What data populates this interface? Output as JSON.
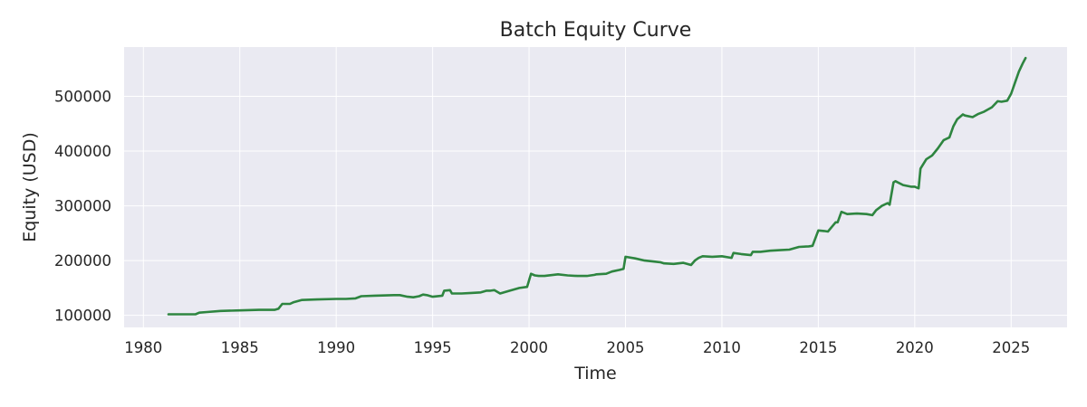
{
  "chart_data": {
    "type": "line",
    "title": "Batch Equity Curve",
    "xlabel": "Time",
    "ylabel": "Equity (USD)",
    "xlim": [
      1979.0,
      2027.9
    ],
    "ylim": [
      78000,
      590000
    ],
    "x_ticks": [
      1980,
      1985,
      1990,
      1995,
      2000,
      2005,
      2010,
      2015,
      2020,
      2025
    ],
    "x_tick_labels": [
      "1980",
      "1985",
      "1990",
      "1995",
      "2000",
      "2005",
      "2010",
      "2015",
      "2020",
      "2025"
    ],
    "y_ticks": [
      100000,
      200000,
      300000,
      400000,
      500000
    ],
    "y_tick_labels": [
      "100000",
      "200000",
      "300000",
      "400000",
      "500000"
    ],
    "grid": true,
    "legend": "none",
    "colors": {
      "line": "#2e8540",
      "plot_bg": "#eaeaf2",
      "grid": "#ffffff",
      "text": "#262626"
    },
    "series": [
      {
        "x": [
          1981.3,
          1982.0,
          1982.7,
          1982.9,
          1983.3,
          1984.0,
          1985.0,
          1986.0,
          1986.4,
          1986.8,
          1987.0,
          1987.2,
          1987.6,
          1987.8,
          1988.2,
          1989.0,
          1990.0,
          1990.5,
          1991.0,
          1991.3,
          1992.0,
          1993.0,
          1993.3,
          1993.7,
          1994.0,
          1994.3,
          1994.5,
          1994.7,
          1995.0,
          1995.5,
          1995.6,
          1995.9,
          1996.0,
          1996.5,
          1997.0,
          1997.5,
          1997.8,
          1998.0,
          1998.2,
          1998.5,
          1999.0,
          1999.5,
          1999.9,
          2000.1,
          2000.3,
          2000.5,
          2000.8,
          2001.5,
          2002.0,
          2002.5,
          2003.0,
          2003.4,
          2003.5,
          2004.0,
          2004.3,
          2004.7,
          2004.9,
          2005.0,
          2005.5,
          2006.0,
          2006.8,
          2007.0,
          2007.5,
          2008.0,
          2008.4,
          2008.6,
          2008.8,
          2009.0,
          2009.5,
          2010.0,
          2010.5,
          2010.6,
          2011.0,
          2011.5,
          2011.6,
          2012.0,
          2012.5,
          2013.0,
          2013.5,
          2014.0,
          2014.5,
          2014.7,
          2015.0,
          2015.3,
          2015.5,
          2015.9,
          2016.0,
          2016.2,
          2016.5,
          2017.0,
          2017.5,
          2017.8,
          2018.0,
          2018.3,
          2018.6,
          2018.7,
          2018.9,
          2019.0,
          2019.4,
          2019.8,
          2020.0,
          2020.2,
          2020.3,
          2020.6,
          2020.9,
          2021.2,
          2021.5,
          2021.8,
          2022.0,
          2022.2,
          2022.5,
          2022.6,
          2023.0,
          2023.3,
          2023.6,
          2024.0,
          2024.3,
          2024.5,
          2024.8,
          2025.0,
          2025.2,
          2025.4,
          2025.6,
          2025.75
        ],
        "y": [
          102000,
          102000,
          102000,
          105000,
          106000,
          108000,
          109000,
          110000,
          110000,
          110000,
          112000,
          121000,
          121000,
          124000,
          128000,
          129000,
          130000,
          130000,
          131000,
          135000,
          136000,
          137000,
          137000,
          134000,
          133000,
          135000,
          138000,
          137000,
          134000,
          136000,
          145000,
          146000,
          140000,
          140000,
          141000,
          142000,
          145000,
          145000,
          146000,
          140000,
          145000,
          150000,
          152000,
          176000,
          173000,
          172000,
          172000,
          175000,
          173000,
          172000,
          172000,
          174000,
          175000,
          176000,
          180000,
          183000,
          185000,
          207000,
          204000,
          200000,
          197000,
          195000,
          194000,
          196000,
          192000,
          200000,
          205000,
          208000,
          207000,
          208000,
          205000,
          214000,
          212000,
          210000,
          216000,
          216000,
          218000,
          219000,
          220000,
          225000,
          226000,
          227000,
          255000,
          254000,
          253000,
          270000,
          270000,
          289000,
          285000,
          286000,
          285000,
          283000,
          292000,
          300000,
          305000,
          302000,
          343000,
          345000,
          338000,
          335000,
          335000,
          332000,
          368000,
          385000,
          392000,
          405000,
          420000,
          425000,
          445000,
          458000,
          467000,
          465000,
          462000,
          468000,
          472000,
          480000,
          491000,
          490000,
          492000,
          505000,
          525000,
          545000,
          560000,
          570000
        ]
      }
    ]
  }
}
